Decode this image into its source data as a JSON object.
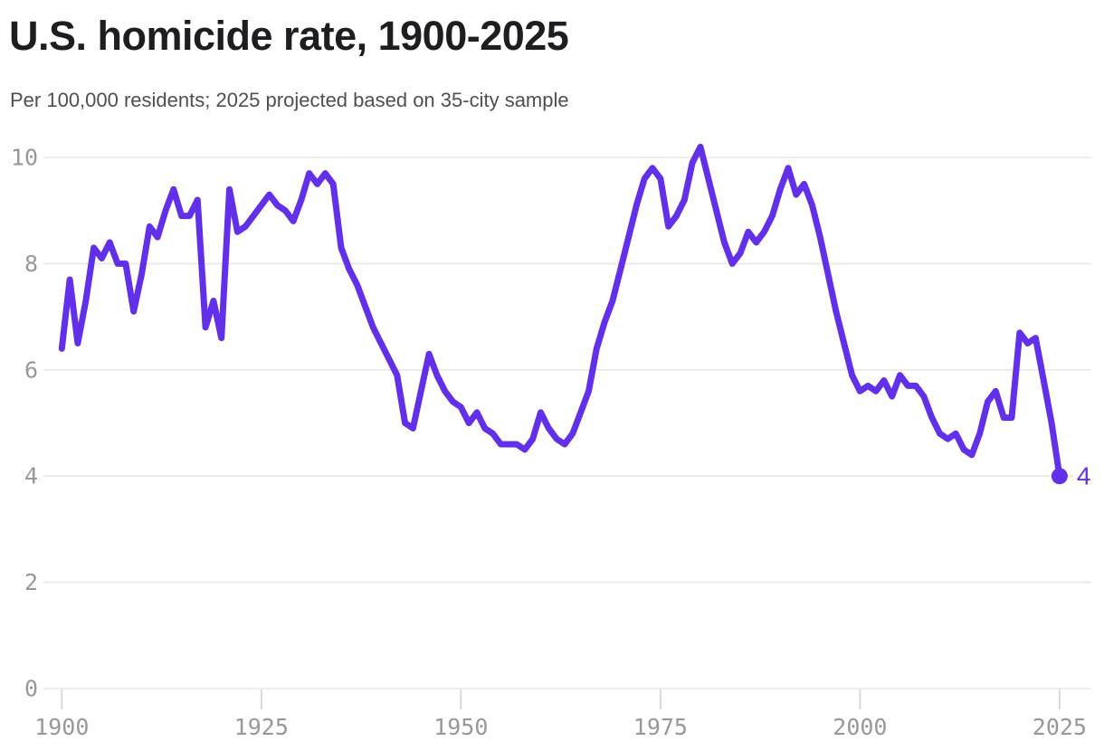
{
  "header": {
    "title": "U.S. homicide rate, 1900-2025",
    "subtitle": "Per 100,000 residents; 2025 projected based on 35-city sample"
  },
  "chart_data": {
    "type": "line",
    "title": "U.S. homicide rate, 1900-2025",
    "subtitle": "Per 100,000 residents; 2025 projected based on 35-city sample",
    "xlabel": "",
    "ylabel": "",
    "years": {
      "start": 1900,
      "end": 2025,
      "step": 1
    },
    "values": [
      6.4,
      7.7,
      6.5,
      7.3,
      8.3,
      8.1,
      8.4,
      8.0,
      8.0,
      7.1,
      7.8,
      8.7,
      8.5,
      9.0,
      9.4,
      8.9,
      8.9,
      9.2,
      6.8,
      7.3,
      6.6,
      9.4,
      8.6,
      8.7,
      8.9,
      9.1,
      9.3,
      9.1,
      9.0,
      8.8,
      9.2,
      9.7,
      9.5,
      9.7,
      9.5,
      8.3,
      7.9,
      7.6,
      7.2,
      6.8,
      6.5,
      6.2,
      5.9,
      5.0,
      4.9,
      5.6,
      6.3,
      5.9,
      5.6,
      5.4,
      5.3,
      5.0,
      5.2,
      4.9,
      4.8,
      4.6,
      4.6,
      4.6,
      4.5,
      4.7,
      5.2,
      4.9,
      4.7,
      4.6,
      4.8,
      5.2,
      5.6,
      6.4,
      6.9,
      7.3,
      7.9,
      8.5,
      9.1,
      9.6,
      9.8,
      9.6,
      8.7,
      8.9,
      9.2,
      9.9,
      10.2,
      9.6,
      9.0,
      8.4,
      8.0,
      8.2,
      8.6,
      8.4,
      8.6,
      8.9,
      9.4,
      9.8,
      9.3,
      9.5,
      9.1,
      8.5,
      7.8,
      7.1,
      6.5,
      5.9,
      5.6,
      5.7,
      5.6,
      5.8,
      5.5,
      5.9,
      5.7,
      5.7,
      5.5,
      5.1,
      4.8,
      4.7,
      4.8,
      4.5,
      4.4,
      4.8,
      5.4,
      5.6,
      5.1,
      5.1,
      6.7,
      6.5,
      6.6,
      5.8,
      5.0,
      4.0
    ],
    "x_ticks": [
      1900,
      1925,
      1950,
      1975,
      2000,
      2025
    ],
    "y_ticks": [
      0,
      2,
      4,
      6,
      8,
      10
    ],
    "ylim": [
      0,
      10
    ],
    "xlim": [
      1900,
      2025
    ],
    "grid": "horizontal",
    "legend_position": "none",
    "end_point": {
      "year": 2025,
      "value": 4,
      "label": "4"
    },
    "colors": {
      "line": "#6130e8",
      "end_dot": "#6130e8",
      "end_label": "#6130e8",
      "gridline": "#e8e7e5",
      "tick_mark": "#d9d9d9",
      "axis_text": "#96989b",
      "title_text": "#1d1e21",
      "subtitle_text": "#4c4f54",
      "background": "#ffffff"
    }
  }
}
